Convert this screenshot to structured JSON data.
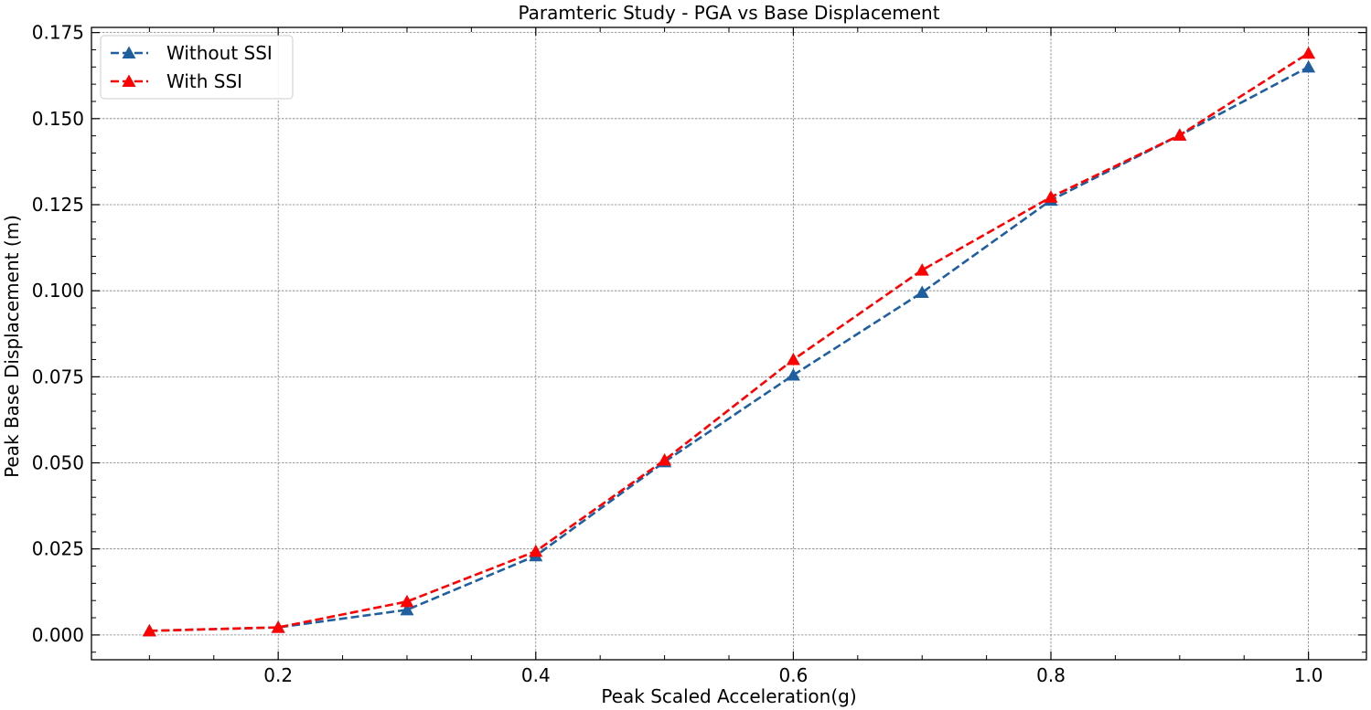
{
  "chart_data": {
    "type": "line",
    "title": "Paramteric Study - PGA vs Base Displacement",
    "xlabel": "Peak Scaled Acceleration(g)",
    "ylabel": "Peak Base Displacement (m)",
    "xlim": [
      0.055,
      1.045
    ],
    "ylim": [
      -0.0072,
      0.1765
    ],
    "xticks": [
      0.2,
      0.4,
      0.6,
      0.8,
      1.0
    ],
    "xtick_labels": [
      "0.2",
      "0.4",
      "0.6",
      "0.8",
      "1.0"
    ],
    "yticks": [
      0,
      0.025,
      0.05,
      0.075,
      0.1,
      0.125,
      0.15,
      0.175
    ],
    "ytick_labels": [
      "0.000",
      "0.025",
      "0.050",
      "0.075",
      "0.100",
      "0.125",
      "0.150",
      "0.175"
    ],
    "grid": true,
    "legend_position": "top-left",
    "x": [
      0.1,
      0.2,
      0.3,
      0.4,
      0.5,
      0.6,
      0.7,
      0.8,
      0.9,
      1.0
    ],
    "series": [
      {
        "name": "Without SSI",
        "color": "#1f5fa0",
        "line_style": "dashed",
        "marker": "triangle-up",
        "values": [
          0.0012,
          0.0022,
          0.0073,
          0.023,
          0.0503,
          0.0755,
          0.0995,
          0.1263,
          0.1452,
          0.165
        ]
      },
      {
        "name": "With SSI",
        "color": "#ff0000",
        "line_style": "dashed",
        "marker": "triangle-up",
        "values": [
          0.0012,
          0.0022,
          0.0097,
          0.0243,
          0.0508,
          0.08,
          0.106,
          0.1272,
          0.1452,
          0.169
        ]
      }
    ]
  }
}
